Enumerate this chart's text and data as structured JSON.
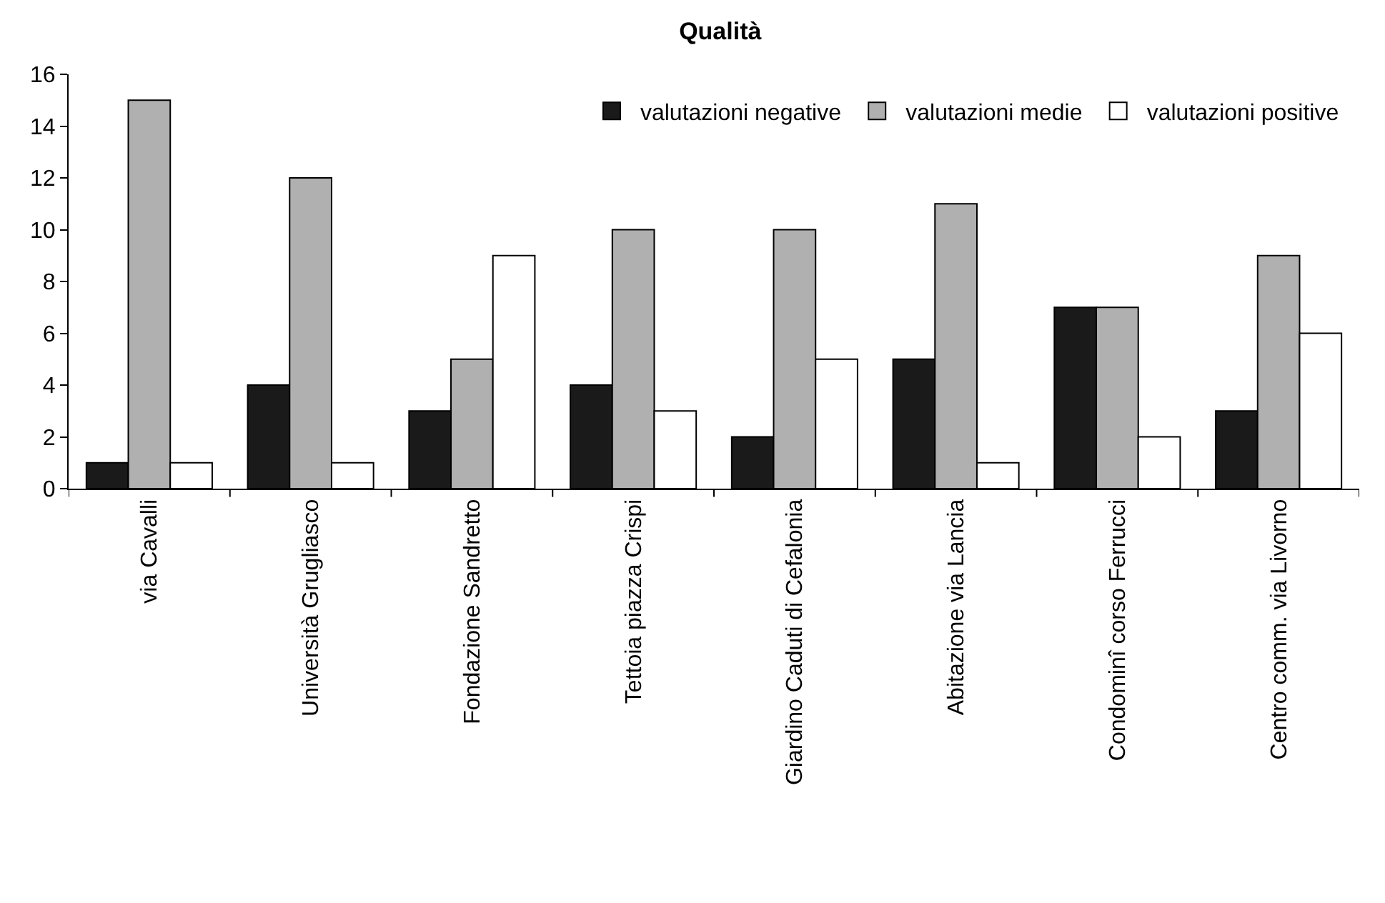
{
  "chart_data": {
    "type": "bar",
    "title": "Qualità",
    "categories": [
      "via Cavalli",
      "Università Grugliasco",
      "Fondazione Sandretto",
      "Tettoia piazza Crispi",
      "Giardino Caduti di Cefalonia",
      "Abitazione via Lancia",
      "Condominî corso Ferrucci",
      "Centro comm. via Livorno"
    ],
    "series": [
      {
        "name": "valutazioni negative",
        "color": "#1a1a1a",
        "values": [
          1,
          4,
          3,
          4,
          2,
          5,
          7,
          3
        ]
      },
      {
        "name": "valutazioni medie",
        "color": "#b0b0b0",
        "values": [
          15,
          12,
          5,
          10,
          10,
          11,
          7,
          9
        ]
      },
      {
        "name": "valutazioni positive",
        "color": "#ffffff",
        "values": [
          1,
          1,
          9,
          3,
          5,
          1,
          2,
          6
        ]
      }
    ],
    "ylim": [
      0,
      16
    ],
    "yticks": [
      0,
      2,
      4,
      6,
      8,
      10,
      12,
      14,
      16
    ],
    "grid": false,
    "legend": "top right"
  }
}
